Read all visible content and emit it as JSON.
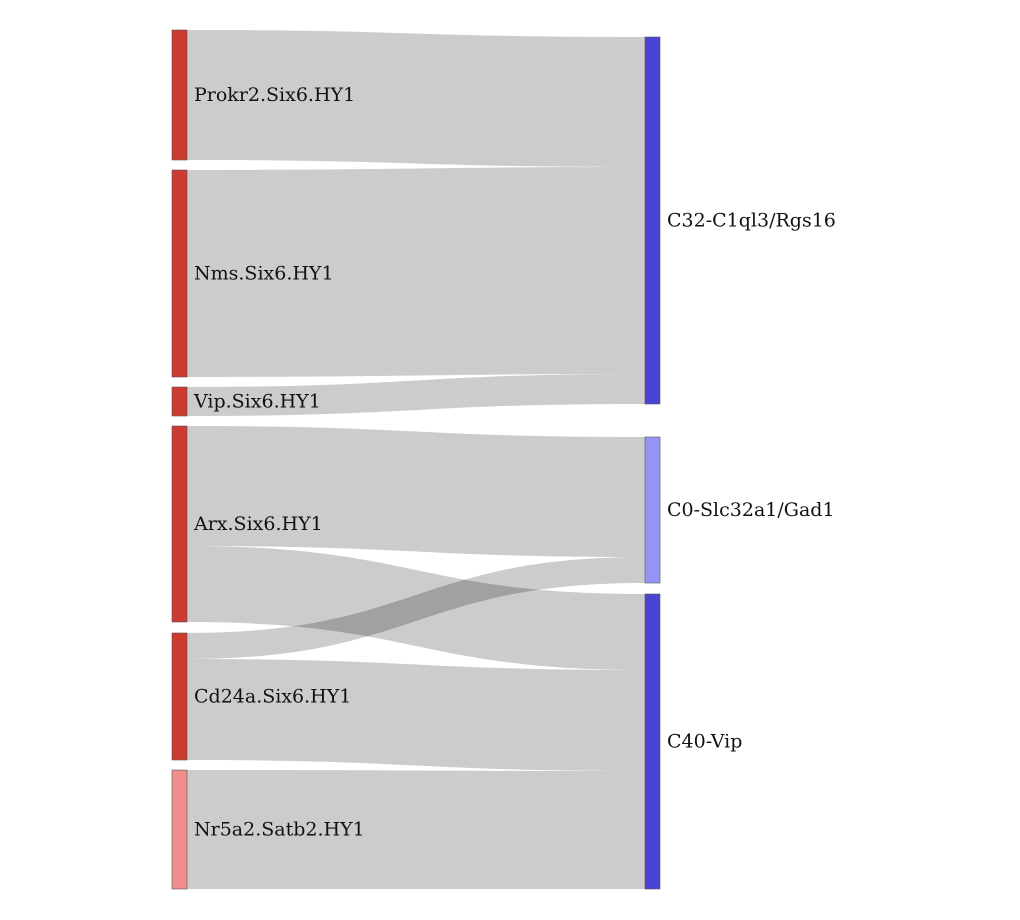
{
  "sankey": {
    "left_nodes": [
      {
        "id": "prokr2",
        "label": "Prokr2.Six6.HY1",
        "color": "#cc3a30"
      },
      {
        "id": "nms",
        "label": "Nms.Six6.HY1",
        "color": "#cc3a30"
      },
      {
        "id": "vip",
        "label": "Vip.Six6.HY1",
        "color": "#cc3a30"
      },
      {
        "id": "arx",
        "label": "Arx.Six6.HY1",
        "color": "#cc3a30"
      },
      {
        "id": "cd24a",
        "label": "Cd24a.Six6.HY1",
        "color": "#cc3a30"
      },
      {
        "id": "nr5a2",
        "label": "Nr5a2.Satb2.HY1",
        "color": "#f08e8e"
      }
    ],
    "right_nodes": [
      {
        "id": "c32",
        "label": "C32-C1ql3/Rgs16",
        "color": "#4a44d4"
      },
      {
        "id": "c0",
        "label": "C0-Slc32a1/Gad1",
        "color": "#9595f5"
      },
      {
        "id": "c40",
        "label": "C40-Vip",
        "color": "#4a44d4"
      }
    ],
    "links": [
      {
        "source": "prokr2",
        "target": "c32"
      },
      {
        "source": "nms",
        "target": "c32"
      },
      {
        "source": "vip",
        "target": "c32"
      },
      {
        "source": "arx",
        "target": "c0"
      },
      {
        "source": "arx",
        "target": "c40"
      },
      {
        "source": "cd24a",
        "target": "c0"
      },
      {
        "source": "cd24a",
        "target": "c40"
      },
      {
        "source": "nr5a2",
        "target": "c40"
      }
    ]
  }
}
